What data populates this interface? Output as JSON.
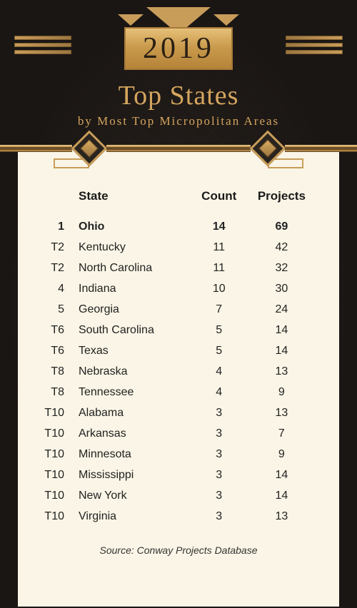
{
  "header": {
    "year": "2019",
    "title": "Top States",
    "subtitle": "by Most Top Micropolitan Areas"
  },
  "colors": {
    "gold_light": "#e6c078",
    "gold_mid": "#c89d5a",
    "gold_dark": "#9d7640",
    "background": "#1a1614",
    "card_bg": "#faf5e6",
    "text": "#1a1a1a"
  },
  "table": {
    "columns": {
      "rank": "",
      "state": "State",
      "count": "Count",
      "projects": "Projects"
    },
    "rows": [
      {
        "rank": "1",
        "state": "Ohio",
        "count": "14",
        "projects": "69",
        "first": true
      },
      {
        "rank": "T2",
        "state": "Kentucky",
        "count": "11",
        "projects": "42"
      },
      {
        "rank": "T2",
        "state": "North Carolina",
        "count": "11",
        "projects": "32"
      },
      {
        "rank": "4",
        "state": "Indiana",
        "count": "10",
        "projects": "30"
      },
      {
        "rank": "5",
        "state": "Georgia",
        "count": "7",
        "projects": "24"
      },
      {
        "rank": "T6",
        "state": "South Carolina",
        "count": "5",
        "projects": "14"
      },
      {
        "rank": "T6",
        "state": "Texas",
        "count": "5",
        "projects": "14"
      },
      {
        "rank": "T8",
        "state": "Nebraska",
        "count": "4",
        "projects": "13"
      },
      {
        "rank": "T8",
        "state": "Tennessee",
        "count": "4",
        "projects": "9"
      },
      {
        "rank": "T10",
        "state": "Alabama",
        "count": "3",
        "projects": "13"
      },
      {
        "rank": "T10",
        "state": "Arkansas",
        "count": "3",
        "projects": "7"
      },
      {
        "rank": "T10",
        "state": "Minnesota",
        "count": "3",
        "projects": "9"
      },
      {
        "rank": "T10",
        "state": "Mississippi",
        "count": "3",
        "projects": "14"
      },
      {
        "rank": "T10",
        "state": "New York",
        "count": "3",
        "projects": "14"
      },
      {
        "rank": "T10",
        "state": "Virginia",
        "count": "3",
        "projects": "13"
      }
    ]
  },
  "source": "Source: Conway Projects Database"
}
